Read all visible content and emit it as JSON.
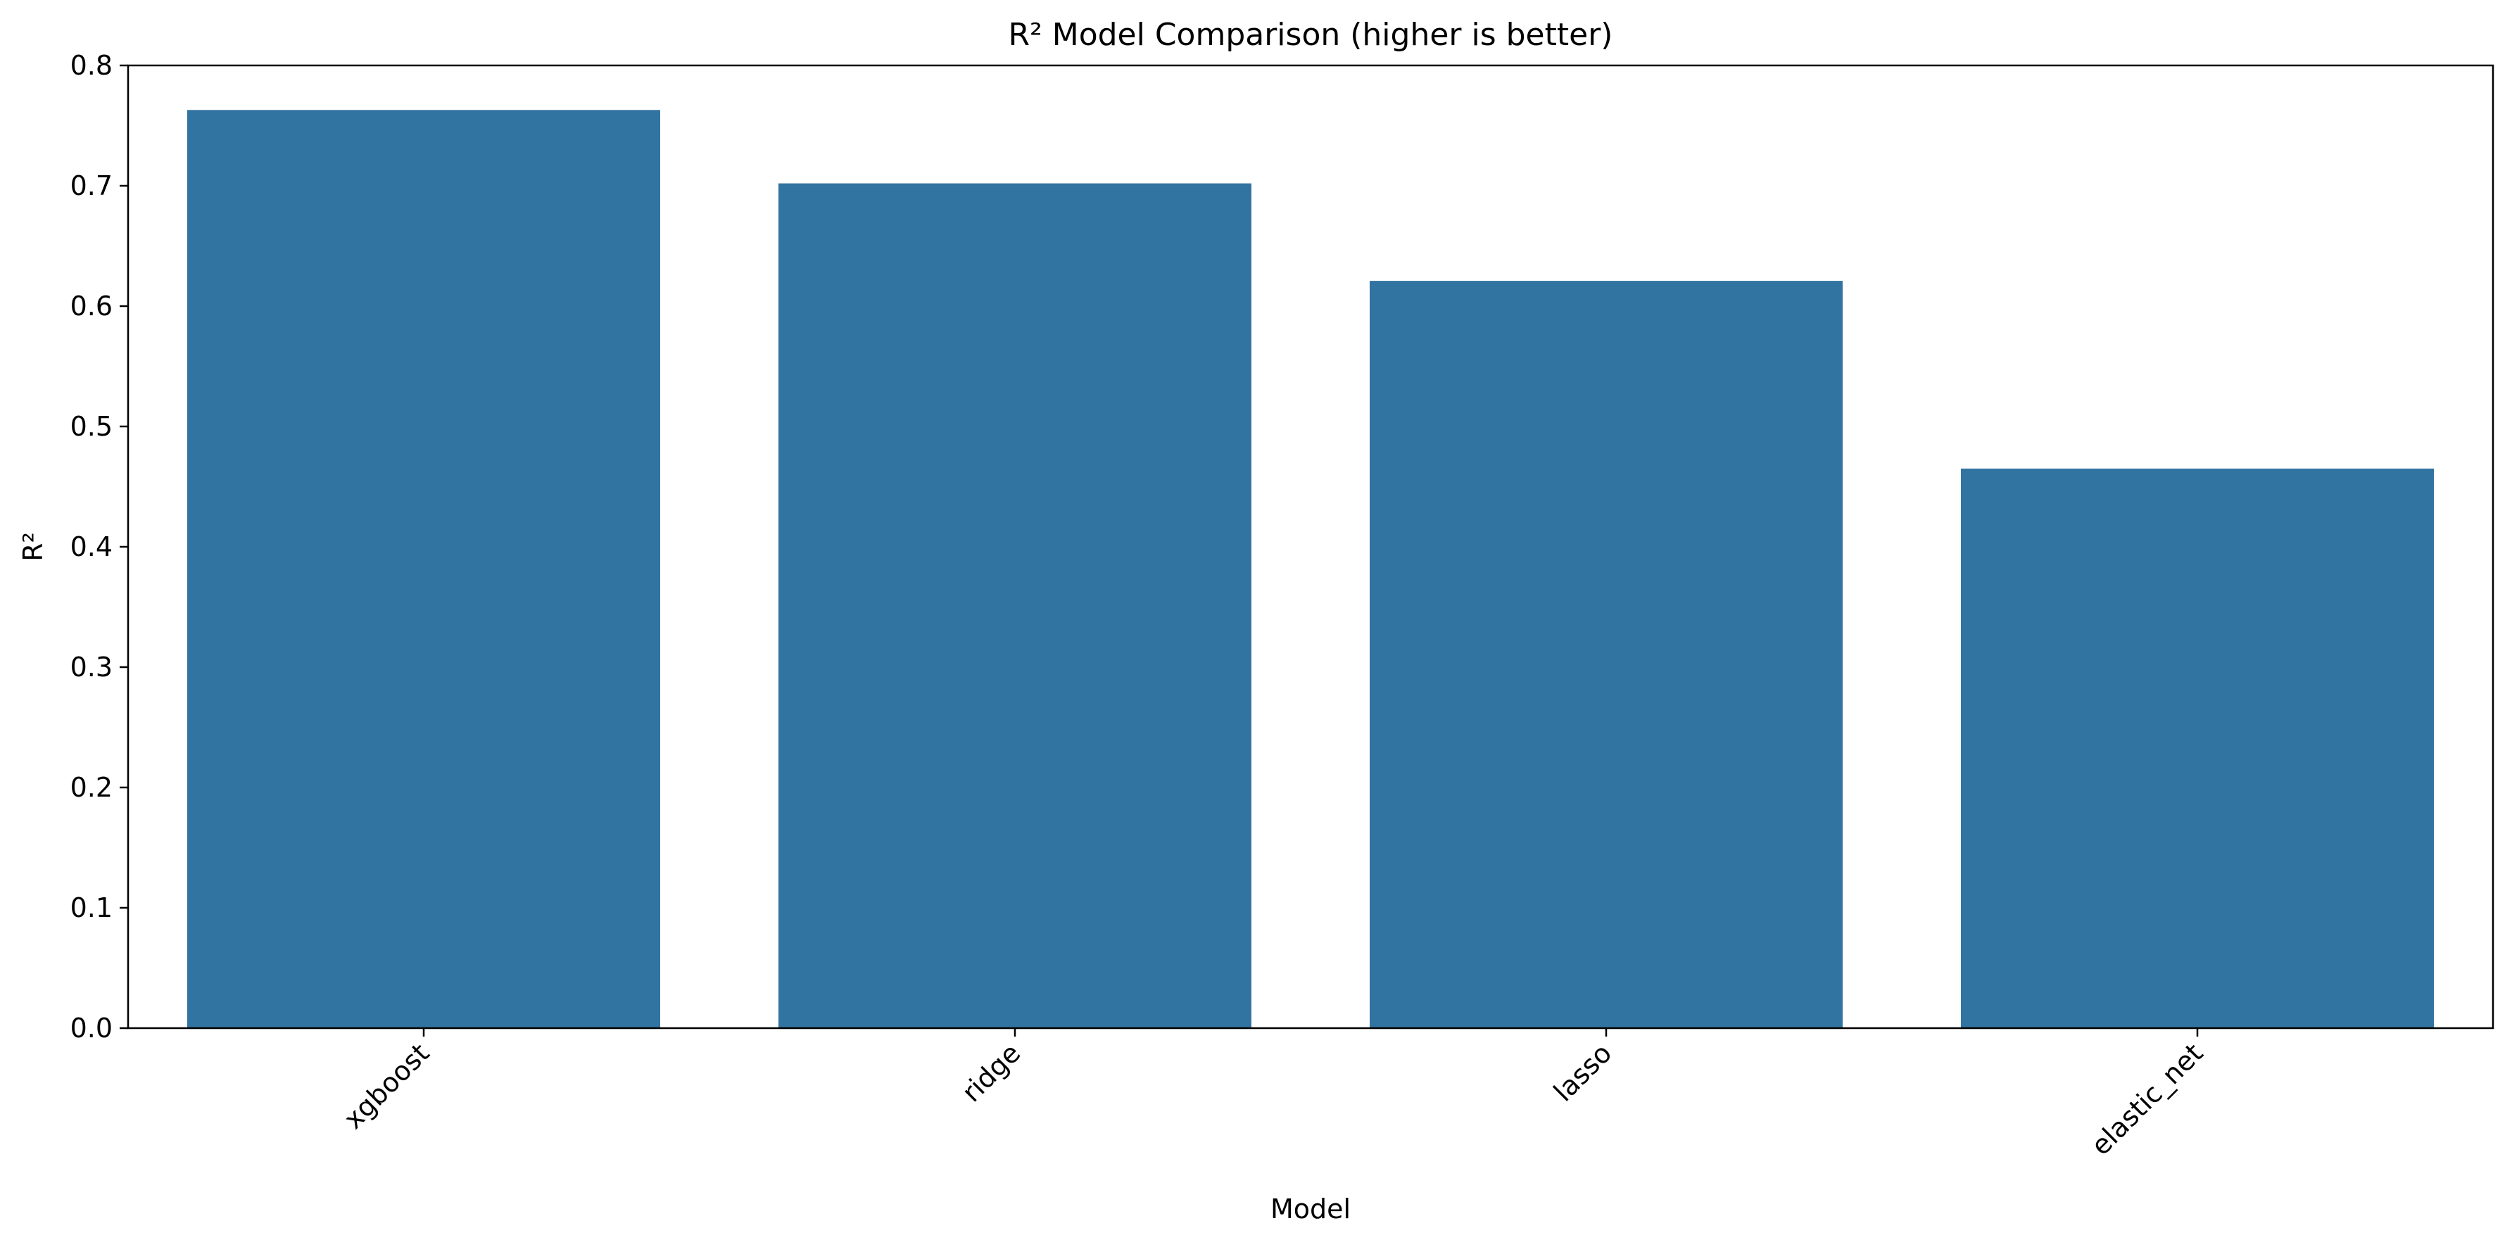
{
  "chart_data": {
    "type": "bar",
    "title": "R² Model Comparison (higher is better)",
    "xlabel": "Model",
    "ylabel": "R²",
    "categories": [
      "xgboost",
      "ridge",
      "lasso",
      "elastic_net"
    ],
    "values": [
      0.763,
      0.702,
      0.621,
      0.465
    ],
    "ylim": [
      0,
      0.8
    ],
    "yticks": [
      "0.0",
      "0.1",
      "0.2",
      "0.3",
      "0.4",
      "0.5",
      "0.6",
      "0.7",
      "0.8"
    ],
    "grid": false,
    "legend": "none",
    "bar_color": "#3274a1",
    "xtick_rotation": 45
  }
}
